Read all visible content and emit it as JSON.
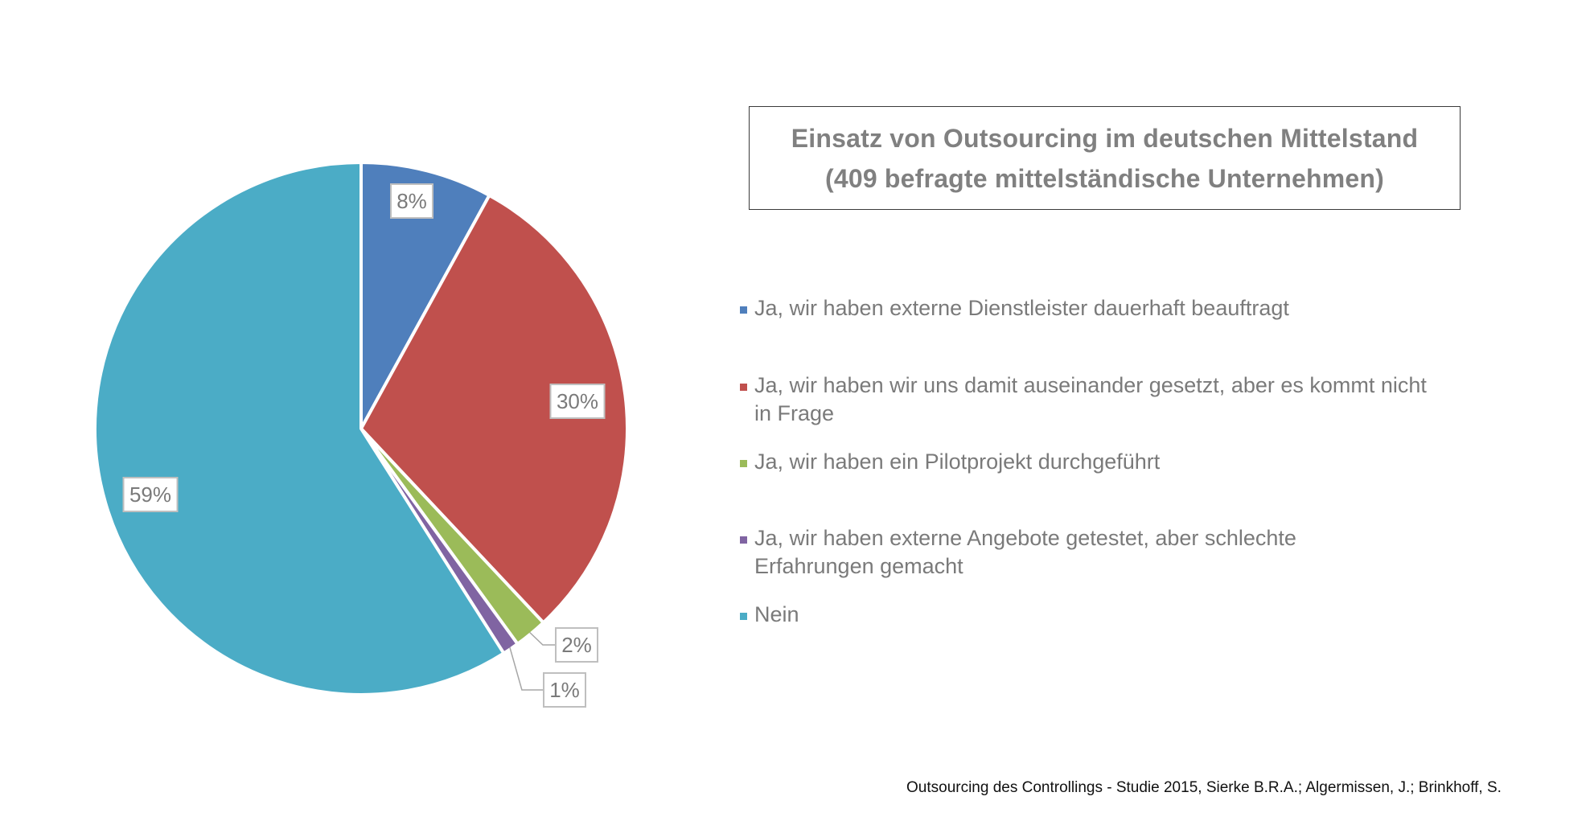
{
  "chart_data": {
    "type": "pie",
    "title": "Einsatz von Outsourcing im deutschen Mittelstand",
    "subtitle": "(409 befragte mittelständische Unternehmen)",
    "start_angle": "top",
    "direction": "clockwise",
    "legend_position": "right",
    "slices": [
      {
        "label": "Ja, wir haben externe Dienstleister dauerhaft beauftragt",
        "value": 8,
        "display": "8%",
        "color": "#4f7fbc"
      },
      {
        "label": "Ja, wir haben wir uns damit auseinander gesetzt, aber es kommt nicht in Frage",
        "value": 30,
        "display": "30%",
        "color": "#c0504d"
      },
      {
        "label": "Ja, wir haben ein Pilotprojekt durchgeführt",
        "value": 2,
        "display": "2%",
        "color": "#9bbb59"
      },
      {
        "label": "Ja, wir haben externe Angebote getestet, aber schlechte Erfahrungen gemacht",
        "value": 1,
        "display": "1%",
        "color": "#8064a2"
      },
      {
        "label": "Nein",
        "value": 59,
        "display": "59%",
        "color": "#4bacc6"
      }
    ]
  },
  "footer": {
    "source": "Outsourcing des Controllings - Studie 2015, Sierke B.R.A.; Algermissen, J.; Brinkhoff, S."
  }
}
